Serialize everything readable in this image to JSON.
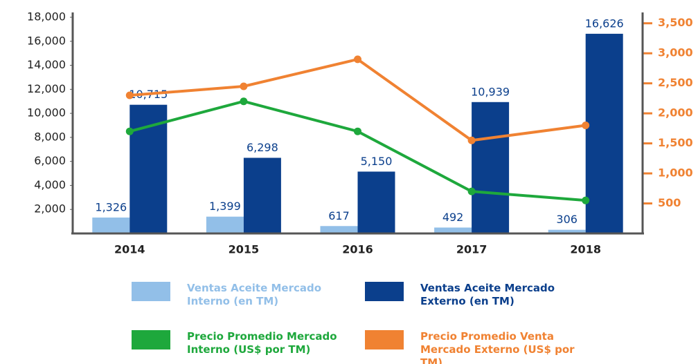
{
  "chart_data": {
    "type": "bar_line",
    "categories": [
      "2014",
      "2015",
      "2016",
      "2017",
      "2018"
    ],
    "series": [
      {
        "name": "Ventas Aceite Mercado Interno (en TM)",
        "color": "#92bfe8",
        "type": "bar",
        "values": [
          1326,
          1399,
          617,
          492,
          306
        ],
        "value_labels": [
          "1,326",
          "1,399",
          "617",
          "492",
          "306"
        ]
      },
      {
        "name": "Ventas Aceite Mercado Externo (en TM)",
        "color": "#0b3f8c",
        "type": "bar",
        "values": [
          10715,
          6298,
          5150,
          10939,
          16626
        ],
        "value_labels": [
          "10,715",
          "6,298",
          "5,150",
          "10,939",
          "16,626"
        ]
      },
      {
        "name": "Precio Promedio Mercado Interno (US$ por TM)",
        "color": "#1ea83c",
        "type": "line",
        "axis": "y2",
        "values": [
          1700,
          2200,
          1700,
          700,
          550
        ]
      },
      {
        "name": "Precio Promedio Venta Mercado Externo (US$ por TM)",
        "color": "#f08232",
        "type": "line",
        "axis": "y2",
        "values": [
          2300,
          2450,
          2900,
          1550,
          1800
        ]
      }
    ],
    "ylim": [
      0,
      18000
    ],
    "yticks": [
      {
        "value": 2000,
        "label": "2,000"
      },
      {
        "value": 4000,
        "label": "4,000"
      },
      {
        "value": 6000,
        "label": "6,000"
      },
      {
        "value": 8000,
        "label": "8,000"
      },
      {
        "value": 10000,
        "label": "10,000"
      },
      {
        "value": 12000,
        "label": "12,000"
      },
      {
        "value": 14000,
        "label": "14,000"
      },
      {
        "value": 16000,
        "label": "16,000"
      },
      {
        "value": 18000,
        "label": "18,000"
      }
    ],
    "y2lim": [
      0,
      3600
    ],
    "y2ticks": [
      500,
      {
        "value": 1000,
        "label": "1,000"
      },
      {
        "value": 1500,
        "label": "1,500"
      },
      {
        "value": 2000,
        "label": "2,000"
      },
      {
        "value": 2500,
        "label": "2,500"
      },
      {
        "value": 3000,
        "label": "3,000"
      },
      {
        "value": 3500,
        "label": "3,500"
      }
    ],
    "y2color": "#f08232"
  }
}
